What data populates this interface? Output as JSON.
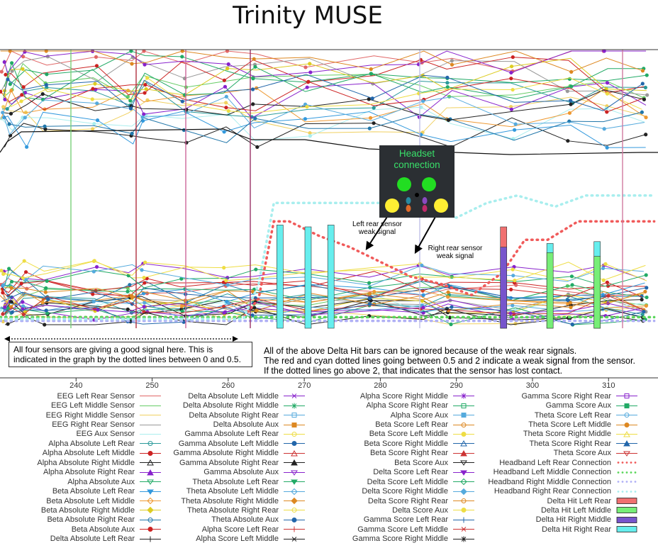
{
  "title": "Trinity MUSE",
  "chart_data": {
    "type": "line",
    "title": "Trinity MUSE",
    "xlabel": "",
    "ylabel": "",
    "xlim": [
      230,
      316.5
    ],
    "x_ticks": [
      240,
      250,
      260,
      270,
      280,
      290,
      300,
      310
    ],
    "grid": false,
    "legend_placement": "bottom",
    "headset_connection_series": [
      {
        "name": "Headband Left Rear Connection",
        "color": "#f05a5a",
        "points": [
          [
            230,
            0.3
          ],
          [
            262,
            0.3
          ],
          [
            264,
            0.8
          ],
          [
            266,
            2.9
          ],
          [
            268,
            2.9
          ],
          [
            272,
            2.5
          ],
          [
            276,
            2.2
          ],
          [
            280,
            1.8
          ],
          [
            284,
            1.4
          ],
          [
            288,
            1.2
          ],
          [
            292,
            0.9
          ],
          [
            296,
            1.5
          ],
          [
            299,
            2.4
          ],
          [
            302,
            2.4
          ],
          [
            306,
            2.9
          ],
          [
            316,
            2.9
          ]
        ]
      },
      {
        "name": "Headband Left Middle Connection",
        "color": "#5ad65a",
        "points": [
          [
            230,
            0.3
          ],
          [
            316,
            0.3
          ]
        ]
      },
      {
        "name": "Headband Right Middle Connection",
        "color": "#b0b0f5",
        "points": [
          [
            230,
            0.2
          ],
          [
            316,
            0.2
          ]
        ]
      },
      {
        "name": "Headband Right Rear Connection",
        "color": "#a8eeee",
        "points": [
          [
            230,
            0.25
          ],
          [
            262,
            0.25
          ],
          [
            264,
            1.2
          ],
          [
            266,
            3.4
          ],
          [
            282,
            3.4
          ],
          [
            286,
            3.2
          ],
          [
            290,
            3.0
          ],
          [
            294,
            3.4
          ],
          [
            298,
            3.6
          ],
          [
            303,
            3.3
          ],
          [
            307,
            3.6
          ],
          [
            316,
            3.6
          ]
        ]
      }
    ],
    "delta_hit_bars": [
      {
        "x": 266.8,
        "series": "Delta Hit Right Rear",
        "value": 2.8
      },
      {
        "x": 270.5,
        "series": "Delta Hit Right Rear",
        "value": 2.75
      },
      {
        "x": 273.5,
        "series": "Delta Hit Right Rear",
        "value": 2.8
      },
      {
        "x": 296.2,
        "series": "Delta Hit Left Rear",
        "value": 2.75
      },
      {
        "x": 296.2,
        "series": "Delta Hit Right Middle",
        "value": 2.2
      },
      {
        "x": 302.3,
        "series": "Delta Hit Right Rear",
        "value": 2.3
      },
      {
        "x": 302.3,
        "series": "Delta Hit Left Middle",
        "value": 2.05
      },
      {
        "x": 308.5,
        "series": "Delta Hit Right Rear",
        "value": 2.35
      },
      {
        "x": 308.5,
        "series": "Delta Hit Left Middle",
        "value": 1.95
      }
    ],
    "dense_series_note_free": true
  },
  "headset": {
    "title_line1": "Headset",
    "title_line2": "connection",
    "sensors": [
      {
        "sensor": "Left Rear",
        "color": "#ffee33"
      },
      {
        "sensor": "Left Middle",
        "color": "#22dd22"
      },
      {
        "sensor": "Right Middle",
        "color": "#22dd22"
      },
      {
        "sensor": "Right Rear",
        "color": "#ffee33"
      }
    ]
  },
  "annotations": {
    "left_rear": [
      "Left rear  sensor",
      "weak  signal"
    ],
    "right_rear": [
      "Right rear sensor",
      "weak signal"
    ],
    "good_signal": "All four sensors are giving a good signal here. This is indicated in the graph by the dotted lines between 0 and 0.5.",
    "weak_signal_1": "All of the above Delta Hit bars can be ignored because of the weak rear signals.",
    "weak_signal_2": "The red and cyan dotted lines going between 0.5 and 2 indicate a weak signal from the sensor.",
    "weak_signal_3": "If the dotted lines go above 2, that indicates that the sensor has lost contact."
  },
  "legend": [
    [
      {
        "label": "EEG Left Rear Sensor",
        "color": "#e06666",
        "kind": "line"
      },
      {
        "label": "EEG Left Middle Sensor",
        "color": "#66cc66",
        "kind": "line"
      },
      {
        "label": "EEG Right Middle Sensor",
        "color": "#f0d060",
        "kind": "line"
      },
      {
        "label": "EEG Right Rear Sensor",
        "color": "#999999",
        "kind": "line"
      },
      {
        "label": "EEG Aux Sensor",
        "color": "#aaeeee",
        "kind": "line"
      },
      {
        "label": "Alpha Absolute Left Rear",
        "color": "#2a9a9a",
        "kind": "line",
        "marker": "circle-open"
      },
      {
        "label": "Alpha Absolute Left Middle",
        "color": "#cc2222",
        "kind": "line",
        "marker": "circle"
      },
      {
        "label": "Alpha Absolute Right Middle",
        "color": "#222222",
        "kind": "line",
        "marker": "triangle-open"
      },
      {
        "label": "Alpha Absolute Right Rear",
        "color": "#8822cc",
        "kind": "line",
        "marker": "triangle"
      },
      {
        "label": "Alpha Absolute Aux",
        "color": "#22aa66",
        "kind": "line",
        "marker": "triangle-down-open"
      },
      {
        "label": "Beta Absolute Left Rear",
        "color": "#3399dd",
        "kind": "line",
        "marker": "triangle-down"
      },
      {
        "label": "Beta Absolute Left Middle",
        "color": "#ee9933",
        "kind": "line",
        "marker": "diamond-open"
      },
      {
        "label": "Beta Absolute Right Middle",
        "color": "#ddcc22",
        "kind": "line",
        "marker": "diamond"
      },
      {
        "label": "Beta Absolute Right Rear",
        "color": "#2277aa",
        "kind": "line",
        "marker": "circle-open"
      },
      {
        "label": "Beta Absolute Aux",
        "color": "#cc2222",
        "kind": "line",
        "marker": "circle"
      },
      {
        "label": "Delta Absolute Left Rear",
        "color": "#222222",
        "kind": "line",
        "marker": "plus"
      }
    ],
    [
      {
        "label": "Delta Absolute Left Middle",
        "color": "#8822cc",
        "kind": "line",
        "marker": "x"
      },
      {
        "label": "Delta Absolute Right Middle",
        "color": "#22aa66",
        "kind": "line",
        "marker": "star"
      },
      {
        "label": "Delta Absolute Right Rear",
        "color": "#55aadd",
        "kind": "line",
        "marker": "square-open"
      },
      {
        "label": "Delta Absolute Aux",
        "color": "#dd8822",
        "kind": "line",
        "marker": "square"
      },
      {
        "label": "Gamma Absolute Left Rear",
        "color": "#eedd44",
        "kind": "line",
        "marker": "circle-open"
      },
      {
        "label": "Gamma Absolute Left Middle",
        "color": "#2266aa",
        "kind": "line",
        "marker": "circle"
      },
      {
        "label": "Gamma Absolute Right Middle",
        "color": "#cc3333",
        "kind": "line",
        "marker": "triangle-open"
      },
      {
        "label": "Gamma Absolute Right Rear",
        "color": "#222222",
        "kind": "line",
        "marker": "triangle"
      },
      {
        "label": "Gamma Absolute Aux",
        "color": "#8822cc",
        "kind": "line",
        "marker": "triangle-down-open"
      },
      {
        "label": "Theta Absolute Left Rear",
        "color": "#22aa66",
        "kind": "line",
        "marker": "triangle-down"
      },
      {
        "label": "Theta Absolute Left Middle",
        "color": "#55aadd",
        "kind": "line",
        "marker": "diamond-open"
      },
      {
        "label": "Theta Absolute Right Middle",
        "color": "#dd8822",
        "kind": "line",
        "marker": "diamond"
      },
      {
        "label": "Theta Absolute Right Rear",
        "color": "#eedd44",
        "kind": "line",
        "marker": "circle-open"
      },
      {
        "label": "Theta Absolute Aux",
        "color": "#2266aa",
        "kind": "line",
        "marker": "circle"
      },
      {
        "label": "Alpha Score Left Rear",
        "color": "#cc3333",
        "kind": "line",
        "marker": "plus"
      },
      {
        "label": "Alpha Score Left Middle",
        "color": "#222222",
        "kind": "line",
        "marker": "x"
      }
    ],
    [
      {
        "label": "Alpha Score Right Middle",
        "color": "#8822cc",
        "kind": "line",
        "marker": "star"
      },
      {
        "label": "Alpha Score Right Rear",
        "color": "#22aa66",
        "kind": "line",
        "marker": "square-open"
      },
      {
        "label": "Alpha Score Aux",
        "color": "#55aadd",
        "kind": "line",
        "marker": "square"
      },
      {
        "label": "Beta Score Left Rear",
        "color": "#dd8822",
        "kind": "line",
        "marker": "circle-open"
      },
      {
        "label": "Beta Score Left Middle",
        "color": "#eedd44",
        "kind": "line",
        "marker": "circle"
      },
      {
        "label": "Beta Score Right Middle",
        "color": "#2266aa",
        "kind": "line",
        "marker": "triangle-open"
      },
      {
        "label": "Beta Score Right Rear",
        "color": "#cc3333",
        "kind": "line",
        "marker": "triangle"
      },
      {
        "label": "Beta Score Aux",
        "color": "#222222",
        "kind": "line",
        "marker": "triangle-down-open"
      },
      {
        "label": "Delta Score Left Rear",
        "color": "#8822cc",
        "kind": "line",
        "marker": "triangle-down"
      },
      {
        "label": "Delta Score Left Middle",
        "color": "#22aa66",
        "kind": "line",
        "marker": "diamond-open"
      },
      {
        "label": "Delta Score Right Middle",
        "color": "#55aadd",
        "kind": "line",
        "marker": "diamond"
      },
      {
        "label": "Delta Score Right Rear",
        "color": "#dd8822",
        "kind": "line",
        "marker": "circle-open"
      },
      {
        "label": "Delta Score Aux",
        "color": "#eedd44",
        "kind": "line",
        "marker": "circle"
      },
      {
        "label": "Gamma Score Left Rear",
        "color": "#2266aa",
        "kind": "line",
        "marker": "plus"
      },
      {
        "label": "Gamma Score Left Middle",
        "color": "#cc3333",
        "kind": "line",
        "marker": "x"
      },
      {
        "label": "Gamma Score Right Middle",
        "color": "#222222",
        "kind": "line",
        "marker": "star"
      }
    ],
    [
      {
        "label": "Gamma Score Right Rear",
        "color": "#8822cc",
        "kind": "line",
        "marker": "square-open"
      },
      {
        "label": "Gamma Score Aux",
        "color": "#22aa66",
        "kind": "line",
        "marker": "square"
      },
      {
        "label": "Theta Score Left Rear",
        "color": "#55aadd",
        "kind": "line",
        "marker": "circle-open"
      },
      {
        "label": "Theta Score Left Middle",
        "color": "#dd8822",
        "kind": "line",
        "marker": "circle"
      },
      {
        "label": "Theta Score Right Middle",
        "color": "#eedd44",
        "kind": "line",
        "marker": "triangle-open"
      },
      {
        "label": "Theta Score Right Rear",
        "color": "#2266aa",
        "kind": "line",
        "marker": "triangle"
      },
      {
        "label": "Theta Score Aux",
        "color": "#cc3333",
        "kind": "line",
        "marker": "triangle-down-open"
      },
      {
        "label": "Headband Left Rear Connection",
        "color": "#f05a5a",
        "kind": "dots"
      },
      {
        "label": "Headband Left Middle Connection",
        "color": "#5ad65a",
        "kind": "dots"
      },
      {
        "label": "Headband Right Middle Connection",
        "color": "#b0b0f5",
        "kind": "dots"
      },
      {
        "label": "Headband Right Rear Connection",
        "color": "#a8eeee",
        "kind": "dots"
      },
      {
        "label": "Delta Hit Left Rear",
        "color": "#f07070",
        "kind": "box"
      },
      {
        "label": "Delta Hit Left Middle",
        "color": "#77ee77",
        "kind": "box"
      },
      {
        "label": "Delta Hit Right Middle",
        "color": "#7755cc",
        "kind": "box"
      },
      {
        "label": "Delta Hit Right Rear",
        "color": "#66eeee",
        "kind": "box"
      }
    ]
  ]
}
